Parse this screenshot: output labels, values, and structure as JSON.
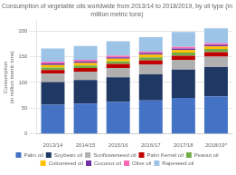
{
  "chart_data": {
    "type": "bar",
    "title": "Consumption of vegetable oils worldwide from 2013/14 to 2018/2019, by oil type (in\nmillion metric tons)",
    "ylabel": "Consumption\n(in million metric tons)",
    "categories": [
      "2013/14",
      "2014/15",
      "2015/16",
      "2016/17",
      "2017/18",
      "2018/19*"
    ],
    "series": [
      {
        "name": "Palm oil",
        "color": "#4472c4",
        "values": [
          57,
          59,
          62,
          65,
          70,
          73
        ]
      },
      {
        "name": "Soybean oil",
        "color": "#1f3864",
        "values": [
          44,
          46,
          48,
          51,
          55,
          57
        ]
      },
      {
        "name": "Sunflowerseed oil",
        "color": "#b0b0b0",
        "values": [
          16,
          16,
          18,
          19,
          19,
          20
        ]
      },
      {
        "name": "Palm Kernel oil",
        "color": "#c00000",
        "values": [
          7,
          7,
          8,
          8,
          8,
          9
        ]
      },
      {
        "name": "Peanut oil",
        "color": "#70ad47",
        "values": [
          5,
          5,
          5,
          6,
          6,
          6
        ]
      },
      {
        "name": "Cottonseed oil",
        "color": "#ffc000",
        "values": [
          5,
          5,
          5,
          5,
          5,
          5
        ]
      },
      {
        "name": "Coconut oil",
        "color": "#7030a0",
        "values": [
          3,
          3,
          3,
          3,
          3,
          3
        ]
      },
      {
        "name": "Olive oil",
        "color": "#ff69b4",
        "values": [
          3,
          3,
          3,
          3,
          3,
          3
        ]
      },
      {
        "name": "Rapeseed oil",
        "color": "#9dc3e6",
        "values": [
          26,
          27,
          28,
          28,
          29,
          29
        ]
      }
    ],
    "stacked": true,
    "ylim": [
      0,
      220
    ],
    "yticks": [
      0,
      50,
      100,
      150,
      200
    ],
    "grid": true,
    "legend": "bottom"
  }
}
